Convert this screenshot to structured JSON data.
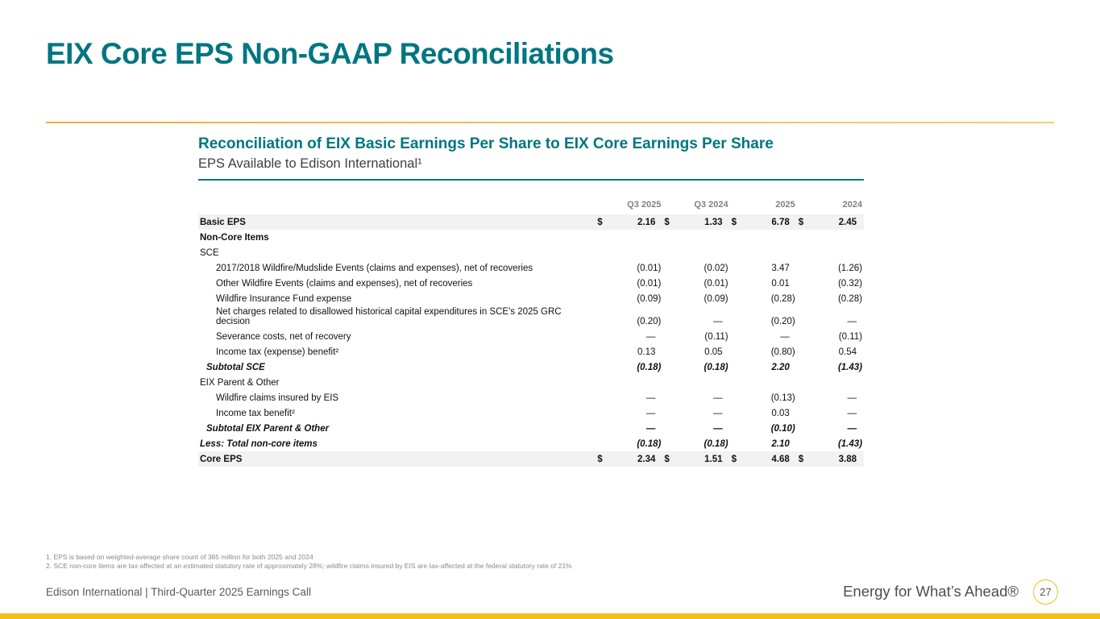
{
  "slide": {
    "title": "EIX Core EPS Non-GAAP Reconciliations"
  },
  "section": {
    "heading": "Reconciliation of EIX Basic Earnings Per Share to EIX Core Earnings Per Share",
    "subheading": "EPS Available to Edison International¹"
  },
  "table": {
    "dollar_sign": "$",
    "columns": [
      "Q3 2025",
      "Q3 2024",
      "2025",
      "2024"
    ],
    "rows": [
      {
        "label": "Basic EPS",
        "indent": 0,
        "classes": [
          "bold",
          "shaded"
        ],
        "dollar": true,
        "values": [
          "2.16",
          "1.33",
          "6.78",
          "2.45"
        ]
      },
      {
        "label": "Non-Core Items",
        "indent": 0,
        "classes": [
          "bold"
        ],
        "dollar": false,
        "values": [
          "",
          "",
          "",
          ""
        ]
      },
      {
        "label": "SCE",
        "indent": 0,
        "classes": [],
        "dollar": false,
        "values": [
          "",
          "",
          "",
          ""
        ]
      },
      {
        "label": "2017/2018 Wildfire/Mudslide Events (claims and expenses), net of recoveries",
        "indent": 2,
        "classes": [],
        "dollar": false,
        "values": [
          "(0.01)",
          "(0.02)",
          "3.47",
          "(1.26)"
        ]
      },
      {
        "label": "Other Wildfire Events (claims and expenses), net of recoveries",
        "indent": 2,
        "classes": [],
        "dollar": false,
        "values": [
          "(0.01)",
          "(0.01)",
          "0.01",
          "(0.32)"
        ]
      },
      {
        "label": "Wildfire Insurance Fund expense",
        "indent": 2,
        "classes": [],
        "dollar": false,
        "values": [
          "(0.09)",
          "(0.09)",
          "(0.28)",
          "(0.28)"
        ]
      },
      {
        "label": "Net charges related to disallowed historical capital expenditures in SCE's 2025 GRC decision",
        "indent": 2,
        "classes": [
          "wrap"
        ],
        "dollar": false,
        "values": [
          "(0.20)",
          "—",
          "(0.20)",
          "—"
        ]
      },
      {
        "label": "Severance costs, net of recovery",
        "indent": 2,
        "classes": [],
        "dollar": false,
        "values": [
          "—",
          "(0.11)",
          "—",
          "(0.11)"
        ]
      },
      {
        "label": "Income tax (expense) benefit²",
        "indent": 2,
        "classes": [],
        "dollar": false,
        "values": [
          "0.13",
          "0.05",
          "(0.80)",
          "0.54"
        ]
      },
      {
        "label": "Subtotal SCE",
        "indent": 1,
        "classes": [
          "subtotal"
        ],
        "dollar": false,
        "values": [
          "(0.18)",
          "(0.18)",
          "2.20",
          "(1.43)"
        ]
      },
      {
        "label": "EIX Parent & Other",
        "indent": 0,
        "classes": [],
        "dollar": false,
        "values": [
          "",
          "",
          "",
          ""
        ]
      },
      {
        "label": "Wildfire claims insured by EIS",
        "indent": 2,
        "classes": [],
        "dollar": false,
        "values": [
          "—",
          "—",
          "(0.13)",
          "—"
        ]
      },
      {
        "label": "Income tax benefit²",
        "indent": 2,
        "classes": [],
        "dollar": false,
        "values": [
          "—",
          "—",
          "0.03",
          "—"
        ]
      },
      {
        "label": "Subtotal EIX Parent & Other",
        "indent": 1,
        "classes": [
          "subtotal"
        ],
        "dollar": false,
        "values": [
          "—",
          "—",
          "(0.10)",
          "—"
        ]
      },
      {
        "label": "Less: Total non-core items",
        "indent": 0,
        "classes": [
          "subtotal"
        ],
        "dollar": false,
        "values": [
          "(0.18)",
          "(0.18)",
          "2.10",
          "(1.43)"
        ]
      },
      {
        "label": "Core EPS",
        "indent": 0,
        "classes": [
          "bold",
          "shaded"
        ],
        "dollar": true,
        "values": [
          "2.34",
          "1.51",
          "4.68",
          "3.88"
        ]
      }
    ]
  },
  "footnotes": [
    "1.   EPS is based on weighted-average share count of 385 million for both 2025 and 2024",
    "2.   SCE non-core items are tax-affected at an estimated statutory rate of approximately 28%; wildfire claims insured by EIS are tax-affected at the federal statutory rate of 21%"
  ],
  "footer": {
    "left": "Edison International |  Third-Quarter 2025 Earnings Call",
    "brand": "Energy for What’s Ahead®",
    "page": "27"
  },
  "colors": {
    "teal": "#007681",
    "gold": "#F0C04A",
    "gold_bar": "#F5BD1F"
  }
}
